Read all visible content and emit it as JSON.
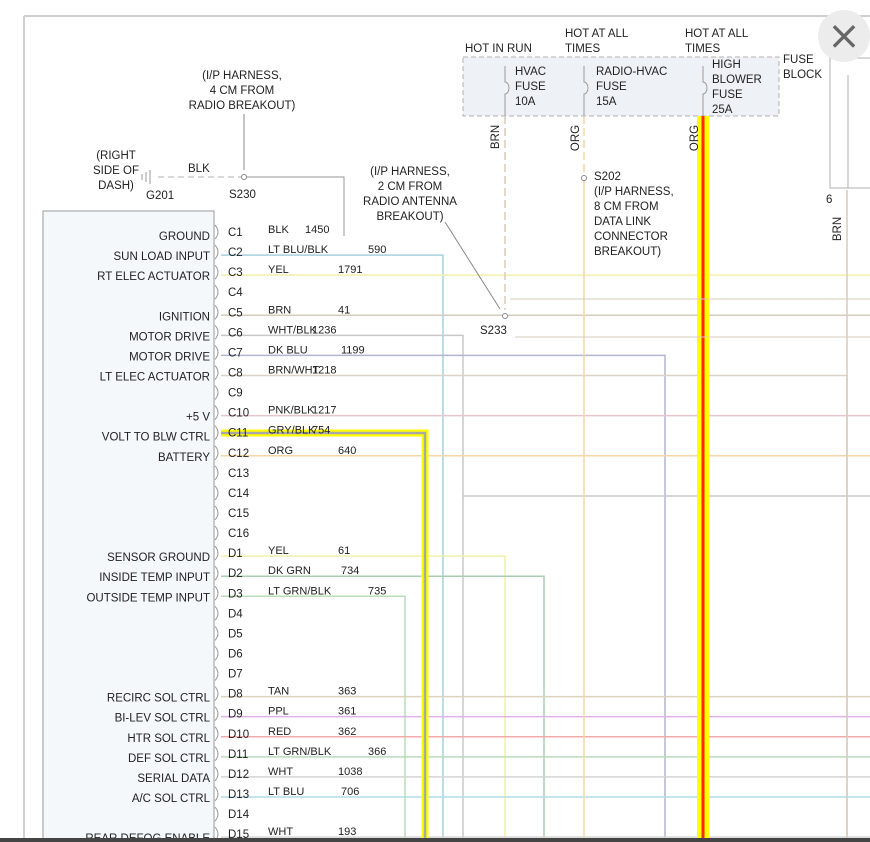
{
  "close_icon": "×",
  "fuse_block": {
    "label": [
      "FUSE",
      "BLOCK"
    ],
    "headers": [
      {
        "lines": [
          "HOT IN RUN"
        ]
      },
      {
        "lines": [
          "HOT AT ALL",
          "TIMES"
        ]
      },
      {
        "lines": [
          "HOT AT ALL",
          "TIMES"
        ]
      }
    ],
    "fuses": [
      {
        "lines": [
          "HVAC",
          "FUSE",
          "10A"
        ],
        "wire": "BRN"
      },
      {
        "lines": [
          "RADIO-HVAC",
          "FUSE",
          "15A"
        ],
        "wire": "ORG"
      },
      {
        "lines": [
          "HIGH",
          "BLOWER",
          "FUSE",
          "25A"
        ],
        "wire": "ORG"
      }
    ],
    "right_pin": "6",
    "right_wire": "BRN"
  },
  "ground": {
    "location": [
      "(RIGHT",
      "SIDE OF",
      "DASH)"
    ],
    "id": "G201",
    "wire": "BLK"
  },
  "splices": {
    "s230": {
      "id": "S230",
      "note": [
        "(I/P HARNESS,",
        "4 CM FROM",
        "RADIO BREAKOUT)"
      ]
    },
    "s233": {
      "id": "S233",
      "note": [
        "(I/P HARNESS,",
        "2 CM FROM",
        "RADIO ANTENNA",
        "BREAKOUT)"
      ]
    },
    "s202": {
      "id": "S202",
      "note": [
        "(I/P HARNESS,",
        "8 CM FROM",
        "DATA LINK",
        "CONNECTOR",
        "BREAKOUT)"
      ]
    }
  },
  "pins": [
    {
      "pin": "C1",
      "label": "GROUND",
      "color": "BLK",
      "circuit": "1450"
    },
    {
      "pin": "C2",
      "label": "SUN LOAD INPUT",
      "color": "LT BLU/BLK",
      "circuit": "590"
    },
    {
      "pin": "C3",
      "label": "RT ELEC ACTUATOR",
      "color": "YEL",
      "circuit": "1791"
    },
    {
      "pin": "C4",
      "label": "",
      "color": "",
      "circuit": ""
    },
    {
      "pin": "C5",
      "label": "IGNITION",
      "color": "BRN",
      "circuit": "41"
    },
    {
      "pin": "C6",
      "label": "MOTOR DRIVE",
      "color": "WHT/BLK",
      "circuit": "1236"
    },
    {
      "pin": "C7",
      "label": "MOTOR DRIVE",
      "color": "DK BLU",
      "circuit": "1199"
    },
    {
      "pin": "C8",
      "label": "LT ELEC ACTUATOR",
      "color": "BRN/WHT",
      "circuit": "1218"
    },
    {
      "pin": "C9",
      "label": "",
      "color": "",
      "circuit": ""
    },
    {
      "pin": "C10",
      "label": "+5 V",
      "color": "PNK/BLK",
      "circuit": "1217"
    },
    {
      "pin": "C11",
      "label": "VOLT TO BLW CTRL",
      "color": "GRY/BLK",
      "circuit": "754"
    },
    {
      "pin": "C12",
      "label": "BATTERY",
      "color": "ORG",
      "circuit": "640"
    },
    {
      "pin": "C13",
      "label": "",
      "color": "",
      "circuit": ""
    },
    {
      "pin": "C14",
      "label": "",
      "color": "",
      "circuit": ""
    },
    {
      "pin": "C15",
      "label": "",
      "color": "",
      "circuit": ""
    },
    {
      "pin": "C16",
      "label": "",
      "color": "",
      "circuit": ""
    },
    {
      "pin": "D1",
      "label": "SENSOR GROUND",
      "color": "YEL",
      "circuit": "61"
    },
    {
      "pin": "D2",
      "label": "INSIDE TEMP INPUT",
      "color": "DK GRN",
      "circuit": "734"
    },
    {
      "pin": "D3",
      "label": "OUTSIDE TEMP INPUT",
      "color": "LT GRN/BLK",
      "circuit": "735"
    },
    {
      "pin": "D4",
      "label": "",
      "color": "",
      "circuit": ""
    },
    {
      "pin": "D5",
      "label": "",
      "color": "",
      "circuit": ""
    },
    {
      "pin": "D6",
      "label": "",
      "color": "",
      "circuit": ""
    },
    {
      "pin": "D7",
      "label": "",
      "color": "",
      "circuit": ""
    },
    {
      "pin": "D8",
      "label": "RECIRC SOL CTRL",
      "color": "TAN",
      "circuit": "363"
    },
    {
      "pin": "D9",
      "label": "BI-LEV SOL CTRL",
      "color": "PPL",
      "circuit": "361"
    },
    {
      "pin": "D10",
      "label": "HTR SOL CTRL",
      "color": "RED",
      "circuit": "362"
    },
    {
      "pin": "D11",
      "label": "DEF SOL CTRL",
      "color": "LT GRN/BLK",
      "circuit": "366"
    },
    {
      "pin": "D12",
      "label": "SERIAL DATA",
      "color": "WHT",
      "circuit": "1038"
    },
    {
      "pin": "D13",
      "label": "A/C SOL CTRL",
      "color": "LT BLU",
      "circuit": "706"
    },
    {
      "pin": "D14",
      "label": "",
      "color": "",
      "circuit": ""
    },
    {
      "pin": "D15",
      "label": "REAR DEFOG ENABLE",
      "color": "WHT",
      "circuit": "193"
    }
  ],
  "highlight_colors": {
    "outer": "#ffff00",
    "inner": "#ff2a00",
    "gray": "#a8a8a8"
  },
  "wire_colors": {
    "BLK": "#777777",
    "LT BLU/BLK": "#a6d0e0",
    "YEL": "#f1f1a8",
    "BRN": "#d6ccbc",
    "WHT/BLK": "#c8c8c8",
    "DK BLU": "#b0b6d0",
    "BRN/WHT": "#dcd3c6",
    "PNK/BLK": "#e8c4cc",
    "ORG": "#f6d6a8",
    "DK GRN": "#a9cdb0",
    "LT GRN/BLK": "#b8ddb8",
    "TAN": "#ddd2bc",
    "PPL": "#e0b0e8",
    "RED": "#f2aaaa",
    "WHT": "#d4d4d4",
    "LT BLU": "#b0dcec"
  }
}
